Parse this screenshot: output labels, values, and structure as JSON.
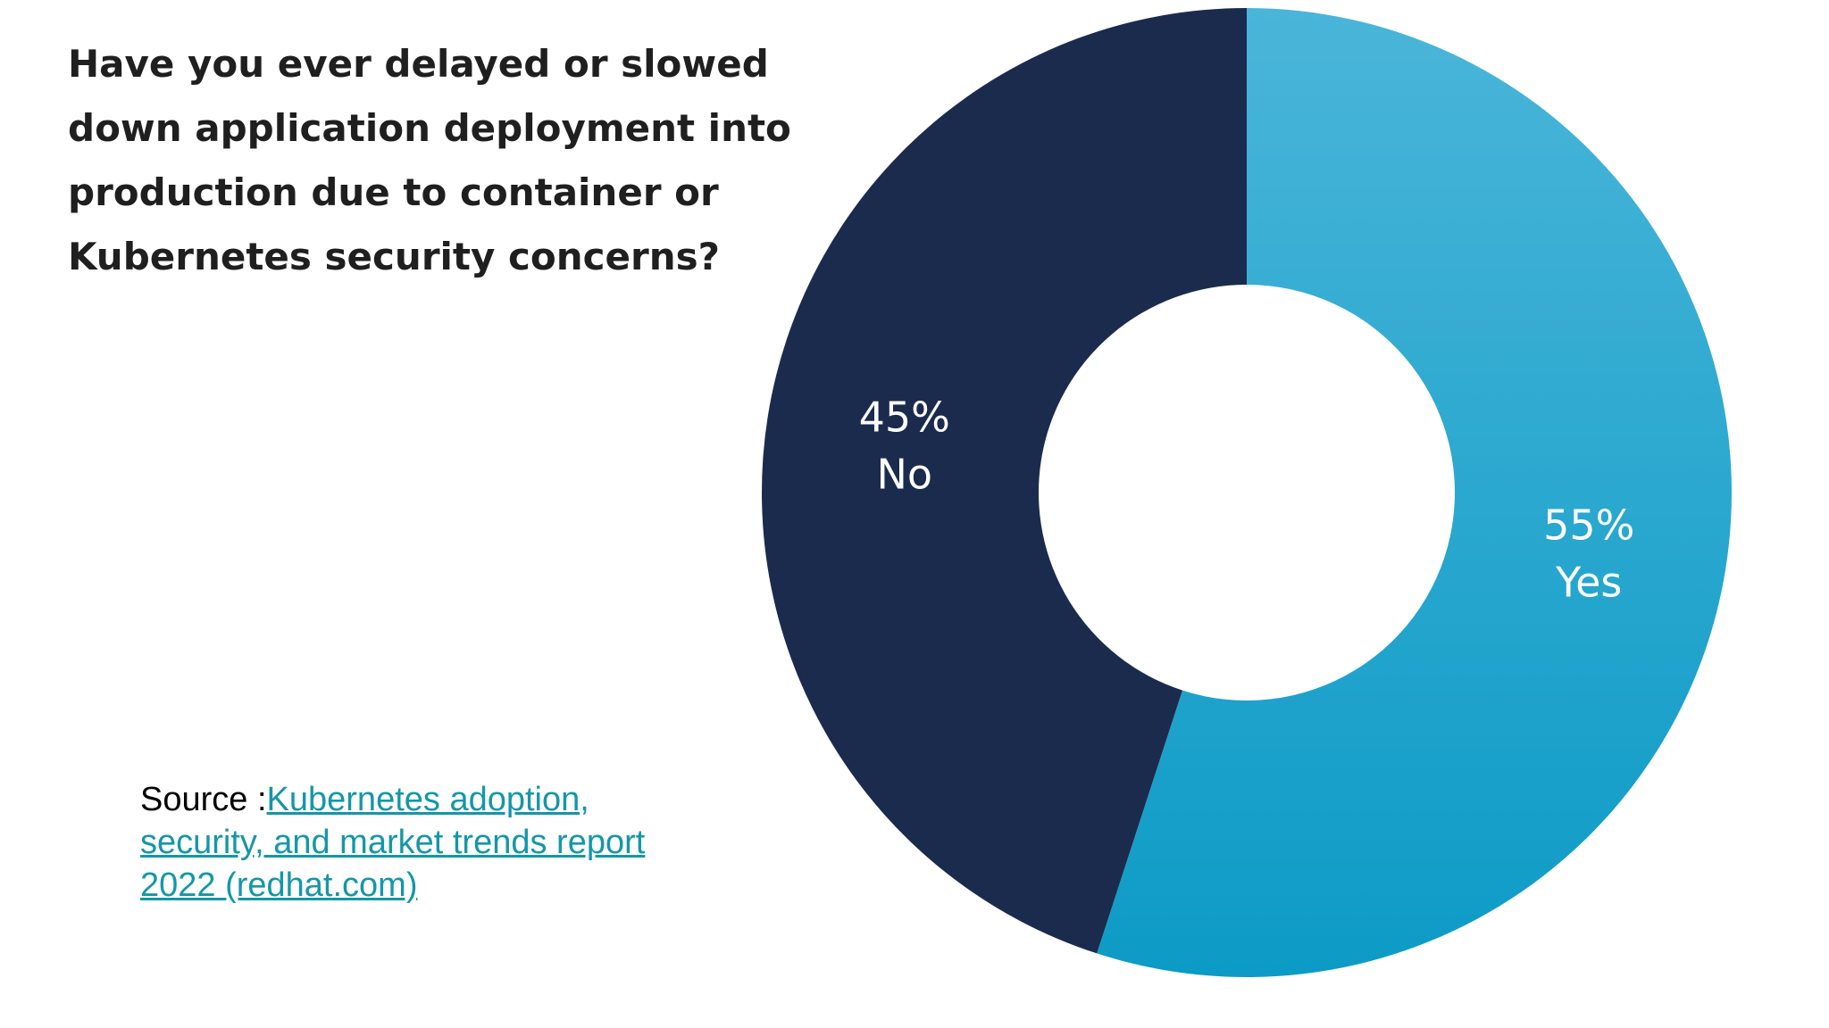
{
  "question": {
    "lines": [
      "Have you ever delayed or slowed",
      "down application deployment into",
      "production due to container or",
      "Kubernetes security concerns?"
    ]
  },
  "source": {
    "prefix": "Source :",
    "link_lines": [
      "Kubernetes adoption,",
      "security, and market trends report",
      "2022 (redhat.com)"
    ]
  },
  "colors": {
    "yes": "#2aaad2",
    "no": "#1b2b4e",
    "link": "#1497a8"
  },
  "chart_data": {
    "type": "pie",
    "variant": "donut",
    "title": "Have you ever delayed or slowed down application deployment into production due to container or Kubernetes security concerns?",
    "slices": [
      {
        "label": "Yes",
        "value": 55,
        "value_label": "55%",
        "color": "#2aaad2"
      },
      {
        "label": "No",
        "value": 45,
        "value_label": "45%",
        "color": "#1b2b4e"
      }
    ],
    "start": "12 o'clock",
    "direction": "clockwise",
    "legend": "none"
  }
}
